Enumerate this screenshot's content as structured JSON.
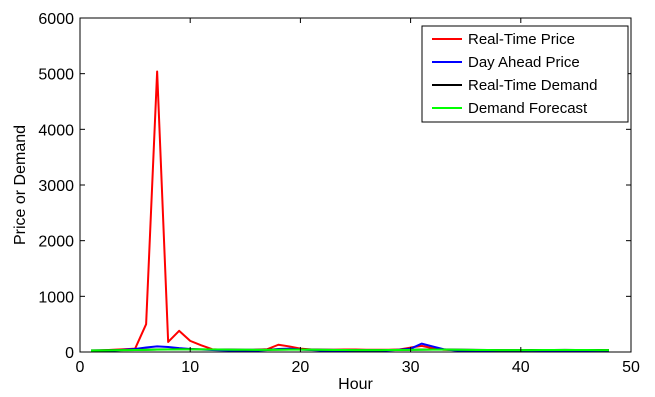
{
  "chart_data": {
    "type": "line",
    "title": "",
    "xlabel": "Hour",
    "ylabel": "Price or Demand",
    "xlim": [
      0,
      50
    ],
    "ylim": [
      0,
      6000
    ],
    "xticks": [
      0,
      10,
      20,
      30,
      40,
      50
    ],
    "yticks": [
      0,
      1000,
      2000,
      3000,
      4000,
      5000,
      6000
    ],
    "grid": false,
    "legend_position": "top-right",
    "x": [
      1,
      2,
      3,
      4,
      5,
      6,
      7,
      8,
      9,
      10,
      11,
      12,
      13,
      14,
      15,
      16,
      17,
      18,
      19,
      20,
      21,
      22,
      23,
      24,
      25,
      26,
      27,
      28,
      29,
      30,
      31,
      32,
      33,
      34,
      35,
      36,
      37,
      38,
      39,
      40,
      41,
      42,
      43,
      44,
      45,
      46,
      47,
      48
    ],
    "series": [
      {
        "name": "Real-Time Price",
        "color": "#ff0000",
        "values": [
          20,
          30,
          40,
          50,
          60,
          500,
          5040,
          180,
          380,
          200,
          120,
          50,
          40,
          35,
          30,
          40,
          50,
          130,
          100,
          60,
          45,
          40,
          40,
          45,
          45,
          40,
          40,
          40,
          45,
          80,
          110,
          70,
          40,
          35,
          35,
          35,
          35,
          30,
          30,
          30,
          30,
          35,
          35,
          35,
          35,
          35,
          35,
          35
        ]
      },
      {
        "name": "Day Ahead Price",
        "color": "#0000ff",
        "values": [
          10,
          15,
          25,
          40,
          55,
          80,
          100,
          90,
          70,
          55,
          45,
          35,
          30,
          25,
          20,
          25,
          35,
          55,
          60,
          45,
          35,
          25,
          15,
          10,
          10,
          15,
          20,
          30,
          40,
          60,
          150,
          100,
          50,
          30,
          20,
          15,
          10,
          10,
          10,
          15,
          20,
          30,
          25,
          20,
          15,
          10,
          10,
          10
        ]
      },
      {
        "name": "Real-Time Demand",
        "color": "#000000",
        "values": [
          30,
          32,
          34,
          36,
          38,
          40,
          45,
          48,
          50,
          50,
          48,
          46,
          44,
          42,
          40,
          40,
          40,
          42,
          44,
          44,
          42,
          40,
          38,
          36,
          34,
          34,
          34,
          36,
          38,
          40,
          42,
          44,
          44,
          42,
          40,
          38,
          36,
          34,
          34,
          34,
          35,
          36,
          37,
          38,
          37,
          36,
          35,
          34
        ]
      },
      {
        "name": "Demand Forecast",
        "color": "#00ff00",
        "values": [
          28,
          30,
          32,
          34,
          36,
          38,
          42,
          46,
          48,
          48,
          47,
          45,
          43,
          41,
          40,
          39,
          39,
          41,
          43,
          43,
          41,
          39,
          37,
          35,
          34,
          33,
          33,
          35,
          37,
          39,
          41,
          43,
          43,
          41,
          39,
          37,
          35,
          33,
          33,
          33,
          34,
          35,
          36,
          37,
          36,
          35,
          34,
          33
        ]
      }
    ]
  }
}
